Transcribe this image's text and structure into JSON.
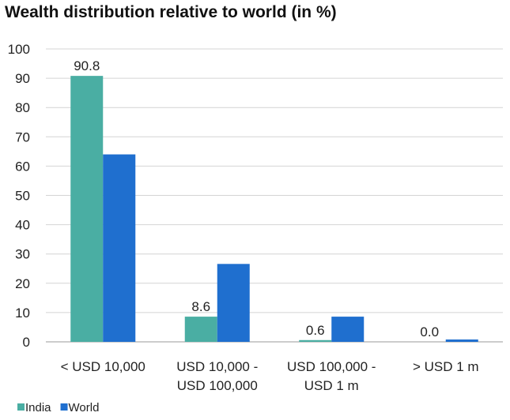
{
  "chart_data": {
    "type": "bar",
    "title": "Wealth distribution relative to world (in %)",
    "xlabel": "",
    "ylabel": "",
    "ylim": [
      0,
      100
    ],
    "yticks": [
      0,
      10,
      20,
      30,
      40,
      50,
      60,
      70,
      80,
      90,
      100
    ],
    "grid": true,
    "legend_position": "bottom-left",
    "categories": [
      [
        "< USD 10,000"
      ],
      [
        "USD 10,000 -",
        "USD 100,000"
      ],
      [
        "USD 100,000 -",
        "USD 1 m"
      ],
      [
        "> USD 1 m"
      ]
    ],
    "series": [
      {
        "name": "India",
        "color": "#4aaea3",
        "values": [
          90.8,
          8.6,
          0.6,
          0.0
        ],
        "data_labels": [
          "90.8",
          "8.6",
          "0.6",
          "0.0"
        ]
      },
      {
        "name": "World",
        "color": "#1f6fcf",
        "values": [
          64,
          26.6,
          8.6,
          0.8
        ],
        "data_labels": null
      }
    ]
  }
}
